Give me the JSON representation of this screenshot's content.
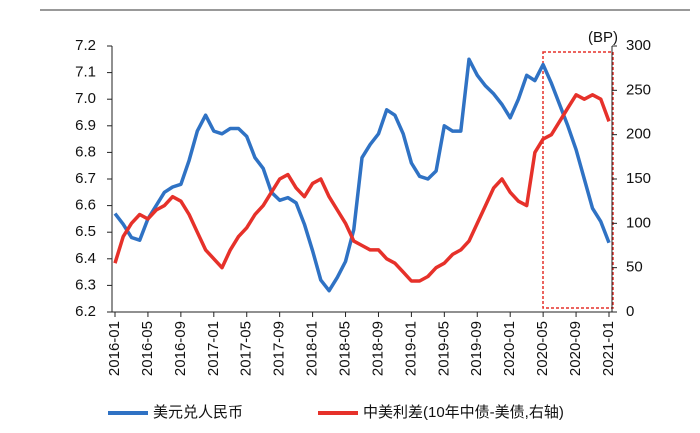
{
  "chart_data": {
    "type": "line",
    "categories": [
      "2016-01",
      null,
      null,
      null,
      "2016-05",
      null,
      null,
      null,
      "2016-09",
      null,
      null,
      null,
      "2017-01",
      null,
      null,
      null,
      "2017-05",
      null,
      null,
      null,
      "2017-09",
      null,
      null,
      null,
      "2018-01",
      null,
      null,
      null,
      "2018-05",
      null,
      null,
      null,
      "2018-09",
      null,
      null,
      null,
      "2019-01",
      null,
      null,
      null,
      "2019-05",
      null,
      null,
      null,
      "2019-09",
      null,
      null,
      null,
      "2020-01",
      null,
      null,
      null,
      "2020-05",
      null,
      null,
      null,
      "2020-09",
      null,
      null,
      null,
      "2021-01"
    ],
    "series": [
      {
        "name": "美元兑人民币",
        "color": "#2f72c4",
        "values": [
          6.57,
          6.53,
          6.48,
          6.47,
          6.55,
          6.6,
          6.65,
          6.67,
          6.68,
          6.77,
          6.88,
          6.94,
          6.88,
          6.87,
          6.89,
          6.89,
          6.86,
          6.78,
          6.74,
          6.65,
          6.62,
          6.63,
          6.61,
          6.53,
          6.43,
          6.32,
          6.28,
          6.33,
          6.39,
          6.51,
          6.78,
          6.83,
          6.87,
          6.96,
          6.94,
          6.87,
          6.76,
          6.71,
          6.7,
          6.73,
          6.9,
          6.88,
          6.88,
          7.15,
          7.09,
          7.05,
          7.02,
          6.98,
          6.93,
          7.0,
          7.09,
          7.07,
          7.13,
          7.06,
          6.98,
          6.9,
          6.81,
          6.7,
          6.59,
          6.54,
          6.46
        ]
      },
      {
        "name": "中美利差(10年中债-美债,右轴)",
        "color": "#e6312a",
        "axis": "y2",
        "values": [
          55,
          85,
          100,
          110,
          105,
          115,
          120,
          130,
          125,
          110,
          90,
          70,
          60,
          50,
          70,
          85,
          95,
          110,
          120,
          135,
          150,
          155,
          140,
          130,
          145,
          150,
          130,
          115,
          100,
          80,
          75,
          70,
          70,
          60,
          55,
          45,
          35,
          35,
          40,
          50,
          55,
          65,
          70,
          80,
          100,
          120,
          140,
          150,
          135,
          125,
          120,
          180,
          195,
          200,
          215,
          230,
          245,
          240,
          245,
          240,
          215
        ]
      }
    ],
    "ylim": [
      6.2,
      7.2
    ],
    "yticks": [
      6.2,
      6.3,
      6.4,
      6.5,
      6.6,
      6.7,
      6.8,
      6.9,
      {
        "value": 7,
        "label": "7.0"
      },
      7.1,
      7.2
    ],
    "y2lim": [
      0,
      300
    ],
    "y2ticks": [
      0,
      50,
      100,
      150,
      200,
      250,
      300
    ],
    "y2_unit": "(BP)",
    "legend": "bottom"
  }
}
